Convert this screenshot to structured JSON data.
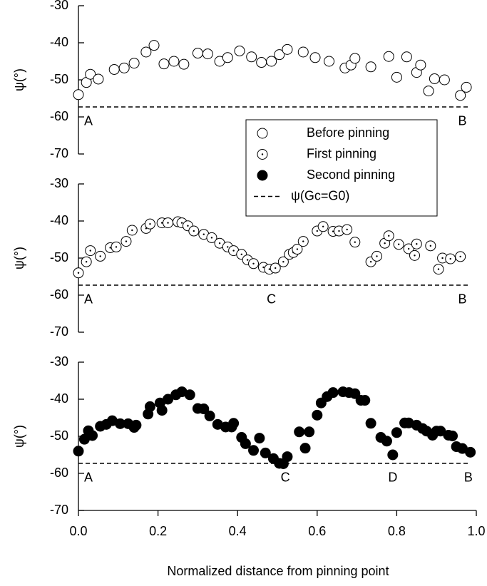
{
  "chart_data": {
    "type": "scatter",
    "xlabel": "Normalized distance from pinning point",
    "ylabel": "ψ(°)",
    "xlim": [
      0,
      1
    ],
    "xticks": [
      {
        "value": 0,
        "label": "0.0"
      },
      0.2,
      0.4,
      0.6,
      0.8,
      {
        "value": 1,
        "label": "1.0"
      }
    ],
    "ylim": [
      -70,
      -30
    ],
    "yticks": [
      -70,
      -60,
      -50,
      -40,
      -30
    ],
    "color": "#000000",
    "reference": {
      "name": "ψ(Gc=G0)",
      "value": -57.3
    },
    "series": [
      {
        "name": "Before pinning",
        "marker": "open",
        "x": [
          0.0,
          0.02,
          0.03,
          0.05,
          0.09,
          0.115,
          0.14,
          0.17,
          0.19,
          0.215,
          0.24,
          0.265,
          0.3,
          0.325,
          0.355,
          0.375,
          0.405,
          0.435,
          0.46,
          0.485,
          0.505,
          0.525,
          0.565,
          0.595,
          0.63,
          0.67,
          0.685,
          0.695,
          0.735,
          0.78,
          0.8,
          0.825,
          0.85,
          0.86,
          0.88,
          0.895,
          0.92,
          0.96,
          0.975
        ],
        "values": [
          -54,
          -50.7,
          -48.5,
          -49.8,
          -47.2,
          -46.8,
          -45.5,
          -42.5,
          -40.7,
          -45.7,
          -45,
          -45.8,
          -42.8,
          -43,
          -45,
          -44,
          -42.2,
          -43.8,
          -45.3,
          -45,
          -43.2,
          -41.8,
          -42.5,
          -44,
          -45,
          -46.8,
          -46,
          -44.2,
          -46.5,
          -43.7,
          -49.3,
          -43.8,
          -48,
          -46,
          -53,
          -49.7,
          -50,
          -54.2,
          -52
        ]
      },
      {
        "name": "First pinning",
        "marker": "dot",
        "x": [
          0.0,
          0.02,
          0.03,
          0.055,
          0.08,
          0.095,
          0.12,
          0.135,
          0.17,
          0.18,
          0.21,
          0.225,
          0.25,
          0.26,
          0.275,
          0.29,
          0.315,
          0.335,
          0.355,
          0.375,
          0.39,
          0.41,
          0.425,
          0.44,
          0.465,
          0.48,
          0.495,
          0.515,
          0.53,
          0.54,
          0.55,
          0.565,
          0.6,
          0.615,
          0.64,
          0.655,
          0.675,
          0.695,
          0.735,
          0.75,
          0.77,
          0.78,
          0.805,
          0.83,
          0.845,
          0.85,
          0.885,
          0.905,
          0.915,
          0.935,
          0.96
        ],
        "values": [
          -54,
          -51,
          -48,
          -49.5,
          -47.2,
          -47,
          -45.5,
          -42.5,
          -42,
          -40.8,
          -40.5,
          -40.5,
          -40.2,
          -40.5,
          -41.3,
          -42.7,
          -43.6,
          -44.5,
          -46,
          -47,
          -48,
          -49,
          -50.5,
          -51.5,
          -52.5,
          -53,
          -52.7,
          -51,
          -49,
          -48.5,
          -47.6,
          -45.5,
          -42.7,
          -41.5,
          -42.8,
          -42.7,
          -42.3,
          -45.7,
          -51,
          -49.5,
          -46,
          -44,
          -46.3,
          -47.5,
          -49.3,
          -46.2,
          -46.7,
          -53,
          -50,
          -50.2,
          -49.6
        ]
      },
      {
        "name": "Second pinning",
        "marker": "filled",
        "x": [
          0.0,
          0.015,
          0.025,
          0.035,
          0.055,
          0.07,
          0.085,
          0.105,
          0.125,
          0.14,
          0.145,
          0.175,
          0.18,
          0.205,
          0.21,
          0.225,
          0.245,
          0.26,
          0.28,
          0.3,
          0.315,
          0.33,
          0.35,
          0.37,
          0.385,
          0.39,
          0.41,
          0.42,
          0.44,
          0.455,
          0.47,
          0.49,
          0.505,
          0.515,
          0.525,
          0.555,
          0.57,
          0.58,
          0.6,
          0.61,
          0.625,
          0.64,
          0.665,
          0.68,
          0.695,
          0.71,
          0.72,
          0.735,
          0.76,
          0.775,
          0.79,
          0.8,
          0.82,
          0.83,
          0.85,
          0.865,
          0.875,
          0.89,
          0.9,
          0.91,
          0.93,
          0.94,
          0.95,
          0.965,
          0.985
        ],
        "values": [
          -54,
          -50.8,
          -48.5,
          -49.8,
          -47.3,
          -46.8,
          -45.8,
          -46.6,
          -46.6,
          -47.6,
          -47,
          -44,
          -42,
          -41,
          -43,
          -40,
          -38.8,
          -38,
          -38.8,
          -42.5,
          -42.6,
          -44.5,
          -46.8,
          -47.5,
          -47.5,
          -46.5,
          -50.3,
          -52,
          -53.8,
          -50.5,
          -54.5,
          -56,
          -57.3,
          -57.4,
          -55.5,
          -48.8,
          -53.2,
          -48.8,
          -44.3,
          -41,
          -39.3,
          -38.2,
          -38,
          -38.2,
          -38.5,
          -40.3,
          -40.3,
          -46.5,
          -50.3,
          -51.3,
          -55,
          -49,
          -46.4,
          -46.4,
          -47,
          -47.9,
          -48.6,
          -49.7,
          -48.6,
          -48.6,
          -49.7,
          -49.9,
          -52.8,
          -53.3,
          -54.3
        ]
      }
    ],
    "annotations": [
      [
        {
          "text": "A",
          "x": 0.025
        },
        {
          "text": "B",
          "x": 0.965
        }
      ],
      [
        {
          "text": "A",
          "x": 0.025
        },
        {
          "text": "C",
          "x": 0.485
        },
        {
          "text": "B",
          "x": 0.965
        }
      ],
      [
        {
          "text": "A",
          "x": 0.025
        },
        {
          "text": "C",
          "x": 0.52
        },
        {
          "text": "D",
          "x": 0.79
        },
        {
          "text": "B",
          "x": 0.98
        }
      ]
    ]
  }
}
